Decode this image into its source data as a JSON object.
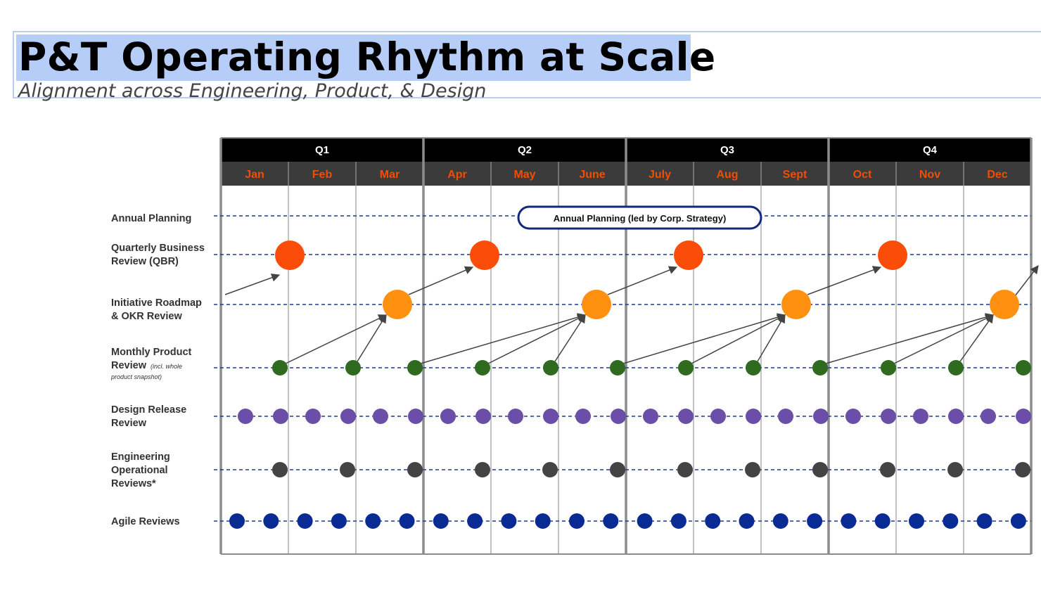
{
  "title": "P&T Operating Rhythm at Scale",
  "subtitle": "Alignment across Engineering, Product, & Design",
  "quarters": [
    "Q1",
    "Q2",
    "Q3",
    "Q4"
  ],
  "months": [
    "Jan",
    "Feb",
    "Mar",
    "Apr",
    "May",
    "June",
    "July",
    "Aug",
    "Sept",
    "Oct",
    "Nov",
    "Dec"
  ],
  "rows": [
    {
      "id": "annual",
      "lines": [
        "Annual Planning"
      ]
    },
    {
      "id": "qbr",
      "lines": [
        "Quarterly Business",
        "Review (QBR)"
      ]
    },
    {
      "id": "okr",
      "lines": [
        "Initiative Roadmap",
        "& OKR Review"
      ]
    },
    {
      "id": "monthly",
      "lines": [
        "Monthly Product",
        "Review"
      ],
      "note_lines": [
        "(incl. whole",
        "product snapshot)"
      ]
    },
    {
      "id": "design",
      "lines": [
        "Design Release",
        "Review"
      ]
    },
    {
      "id": "eng",
      "lines": [
        "Engineering",
        "Operational",
        "Reviews*"
      ]
    },
    {
      "id": "agile",
      "lines": [
        "Agile Reviews"
      ]
    }
  ],
  "annual_planning_label": "Annual Planning (led by Corp. Strategy)",
  "colors": {
    "header_bg": "#000000",
    "month_bg": "#3b3b3b",
    "month_text": "#f04e00",
    "grid_line": "#8c8c8c",
    "dashed_line": "#1f3a8f",
    "qbr": "#fa4d0a",
    "okr": "#ff9010",
    "monthly": "#2e6b1e",
    "design": "#6a4ea8",
    "eng": "#444444",
    "agile": "#0a2a94",
    "pill_border": "#14277e",
    "arrow": "#444444"
  },
  "icons": {
    "connector": "arrow"
  }
}
